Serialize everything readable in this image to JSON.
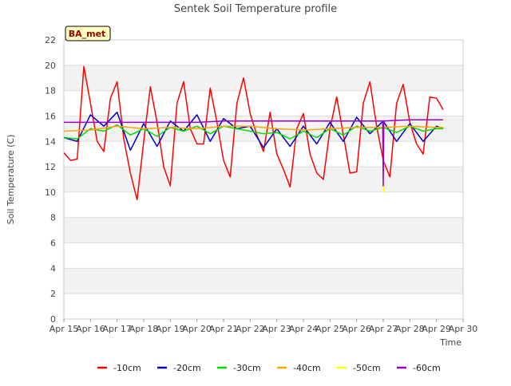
{
  "chart_data": {
    "type": "line",
    "title": "Sentek Soil Temperature profile",
    "xlabel": "Time",
    "ylabel": "Soil Temperature (C)",
    "site_label": "BA_met",
    "ylim": [
      0,
      22
    ],
    "yticks": [
      0,
      2,
      4,
      6,
      8,
      10,
      12,
      14,
      16,
      18,
      20,
      22
    ],
    "xlim": [
      "2024-04-15",
      "2024-04-30"
    ],
    "xticks": [
      "Apr 15",
      "Apr 16",
      "Apr 17",
      "Apr 18",
      "Apr 19",
      "Apr 20",
      "Apr 21",
      "Apr 22",
      "Apr 23",
      "Apr 24",
      "Apr 25",
      "Apr 26",
      "Apr 27",
      "Apr 28",
      "Apr 29",
      "Apr 30"
    ],
    "grid": "horizontal alternating bands",
    "legend_position": "bottom",
    "series": [
      {
        "name": "-10cm",
        "color": "#ff0000",
        "x": [
          "2024-04-15 00:00",
          "2024-04-15 06:00",
          "2024-04-15 12:00",
          "2024-04-15 18:00",
          "2024-04-16 00:00",
          "2024-04-16 06:00",
          "2024-04-16 12:00",
          "2024-04-16 18:00",
          "2024-04-17 00:00",
          "2024-04-17 06:00",
          "2024-04-17 12:00",
          "2024-04-17 18:00",
          "2024-04-18 00:00",
          "2024-04-18 06:00",
          "2024-04-18 12:00",
          "2024-04-18 18:00",
          "2024-04-19 00:00",
          "2024-04-19 06:00",
          "2024-04-19 12:00",
          "2024-04-19 18:00",
          "2024-04-20 00:00",
          "2024-04-20 06:00",
          "2024-04-20 12:00",
          "2024-04-20 18:00",
          "2024-04-21 00:00",
          "2024-04-21 06:00",
          "2024-04-21 12:00",
          "2024-04-21 18:00",
          "2024-04-22 00:00",
          "2024-04-22 06:00",
          "2024-04-22 12:00",
          "2024-04-22 18:00",
          "2024-04-23 00:00",
          "2024-04-23 06:00",
          "2024-04-23 12:00",
          "2024-04-23 18:00",
          "2024-04-24 00:00",
          "2024-04-24 06:00",
          "2024-04-24 12:00",
          "2024-04-24 18:00",
          "2024-04-25 00:00",
          "2024-04-25 06:00",
          "2024-04-25 12:00",
          "2024-04-25 18:00",
          "2024-04-26 00:00",
          "2024-04-26 06:00",
          "2024-04-26 12:00",
          "2024-04-26 18:00",
          "2024-04-27 00:00",
          "2024-04-27 06:00",
          "2024-04-27 12:00",
          "2024-04-27 18:00",
          "2024-04-28 00:00",
          "2024-04-28 06:00",
          "2024-04-28 12:00",
          "2024-04-28 18:00",
          "2024-04-29 00:00",
          "2024-04-29 06:00"
        ],
        "y": [
          13.1,
          12.5,
          12.6,
          19.9,
          17.0,
          14.0,
          13.2,
          17.4,
          18.7,
          14.2,
          11.5,
          9.4,
          14.0,
          18.3,
          15.5,
          12.0,
          10.5,
          17.0,
          18.7,
          15.0,
          13.8,
          13.8,
          18.2,
          15.5,
          12.5,
          11.2,
          17.0,
          19.0,
          16.2,
          14.5,
          13.2,
          16.3,
          13.0,
          11.8,
          10.4,
          15.0,
          16.2,
          13.0,
          11.5,
          11.0,
          15.0,
          17.5,
          14.5,
          11.5,
          11.6,
          17.0,
          18.7,
          15.2,
          12.5,
          11.2,
          17.0,
          18.5,
          15.5,
          13.8,
          13.0,
          17.5,
          17.4,
          16.5
        ]
      },
      {
        "name": "-20cm",
        "color": "#0000cc",
        "x": [
          "2024-04-15 00:00",
          "2024-04-15 12:00",
          "2024-04-16 00:00",
          "2024-04-16 12:00",
          "2024-04-17 00:00",
          "2024-04-17 12:00",
          "2024-04-18 00:00",
          "2024-04-18 12:00",
          "2024-04-19 00:00",
          "2024-04-19 12:00",
          "2024-04-20 00:00",
          "2024-04-20 12:00",
          "2024-04-21 00:00",
          "2024-04-21 12:00",
          "2024-04-22 00:00",
          "2024-04-22 12:00",
          "2024-04-23 00:00",
          "2024-04-23 12:00",
          "2024-04-24 00:00",
          "2024-04-24 12:00",
          "2024-04-25 00:00",
          "2024-04-25 12:00",
          "2024-04-26 00:00",
          "2024-04-26 12:00",
          "2024-04-27 00:00",
          "2024-04-27 12:00",
          "2024-04-28 00:00",
          "2024-04-28 12:00",
          "2024-04-29 00:00",
          "2024-04-29 06:00"
        ],
        "y": [
          14.3,
          14.0,
          16.1,
          15.2,
          16.3,
          13.3,
          15.4,
          13.6,
          15.6,
          14.8,
          16.1,
          14.0,
          15.8,
          15.0,
          15.2,
          13.5,
          15.0,
          13.6,
          15.2,
          13.8,
          15.5,
          14.0,
          15.9,
          14.6,
          15.6,
          14.0,
          15.4,
          14.0,
          15.2,
          15.0
        ]
      },
      {
        "name": "-30cm",
        "color": "#00dd00",
        "x": [
          "2024-04-15 00:00",
          "2024-04-15 12:00",
          "2024-04-16 00:00",
          "2024-04-16 12:00",
          "2024-04-17 00:00",
          "2024-04-17 12:00",
          "2024-04-18 00:00",
          "2024-04-18 12:00",
          "2024-04-19 00:00",
          "2024-04-19 12:00",
          "2024-04-20 00:00",
          "2024-04-20 12:00",
          "2024-04-21 00:00",
          "2024-04-21 12:00",
          "2024-04-22 00:00",
          "2024-04-22 12:00",
          "2024-04-23 00:00",
          "2024-04-23 12:00",
          "2024-04-24 00:00",
          "2024-04-24 12:00",
          "2024-04-25 00:00",
          "2024-04-25 12:00",
          "2024-04-26 00:00",
          "2024-04-26 12:00",
          "2024-04-27 00:00",
          "2024-04-27 12:00",
          "2024-04-28 00:00",
          "2024-04-28 12:00",
          "2024-04-29 00:00",
          "2024-04-29 06:00"
        ],
        "y": [
          14.3,
          14.2,
          15.0,
          14.8,
          15.3,
          14.5,
          15.0,
          14.4,
          15.1,
          14.8,
          15.2,
          14.6,
          15.2,
          15.0,
          14.8,
          14.6,
          14.7,
          14.2,
          14.8,
          14.3,
          15.0,
          14.5,
          15.2,
          14.8,
          15.1,
          14.7,
          15.2,
          14.8,
          15.0,
          15.0
        ]
      },
      {
        "name": "-40cm",
        "color": "#ffa500",
        "x": [
          "2024-04-15 00:00",
          "2024-04-16 00:00",
          "2024-04-17 00:00",
          "2024-04-18 00:00",
          "2024-04-19 00:00",
          "2024-04-20 00:00",
          "2024-04-21 00:00",
          "2024-04-22 00:00",
          "2024-04-23 00:00",
          "2024-04-24 00:00",
          "2024-04-25 00:00",
          "2024-04-26 00:00",
          "2024-04-27 00:00",
          "2024-04-28 00:00",
          "2024-04-29 00:00",
          "2024-04-29 06:00"
        ],
        "y": [
          14.8,
          14.9,
          15.2,
          15.0,
          15.1,
          15.0,
          15.2,
          15.2,
          15.0,
          14.9,
          15.0,
          15.1,
          15.1,
          15.2,
          15.1,
          15.1
        ]
      },
      {
        "name": "-50cm",
        "color": "#ffff00",
        "x": [
          "2024-04-27 00:00",
          "2024-04-27 00:30"
        ],
        "y": [
          15.0,
          10.0
        ]
      },
      {
        "name": "-60cm",
        "color": "#9900cc",
        "x": [
          "2024-04-15 00:00",
          "2024-04-16 00:00",
          "2024-04-17 00:00",
          "2024-04-18 00:00",
          "2024-04-19 00:00",
          "2024-04-20 00:00",
          "2024-04-21 00:00",
          "2024-04-22 00:00",
          "2024-04-23 00:00",
          "2024-04-24 00:00",
          "2024-04-25 00:00",
          "2024-04-26 00:00",
          "2024-04-26 23:30",
          "2024-04-27 00:00",
          "2024-04-27 00:30",
          "2024-04-28 00:00",
          "2024-04-29 00:00",
          "2024-04-29 06:00"
        ],
        "y": [
          15.5,
          15.5,
          15.5,
          15.5,
          15.5,
          15.5,
          15.6,
          15.6,
          15.6,
          15.6,
          15.6,
          15.6,
          15.6,
          10.5,
          15.6,
          15.7,
          15.7,
          15.7
        ]
      }
    ]
  }
}
